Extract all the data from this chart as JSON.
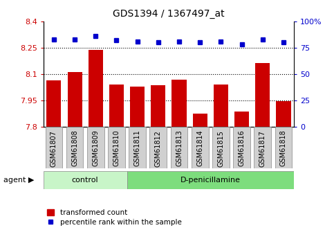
{
  "title": "GDS1394 / 1367497_at",
  "samples": [
    "GSM61807",
    "GSM61808",
    "GSM61809",
    "GSM61810",
    "GSM61811",
    "GSM61812",
    "GSM61813",
    "GSM61814",
    "GSM61815",
    "GSM61816",
    "GSM61817",
    "GSM61818"
  ],
  "bar_values": [
    8.065,
    8.11,
    8.24,
    8.04,
    8.03,
    8.035,
    8.07,
    7.875,
    8.04,
    7.885,
    8.165,
    7.945
  ],
  "percentile_values": [
    83,
    83,
    86,
    82,
    81,
    80,
    81,
    80,
    81,
    78,
    83,
    80
  ],
  "bar_color": "#cc0000",
  "percentile_color": "#0000cc",
  "ylim_left": [
    7.8,
    8.4
  ],
  "ylim_right": [
    0,
    100
  ],
  "yticks_left": [
    7.8,
    7.95,
    8.1,
    8.25,
    8.4
  ],
  "yticks_right": [
    0,
    25,
    50,
    75,
    100
  ],
  "ylabel_left_labels": [
    "7.8",
    "7.95",
    "8.1",
    "8.25",
    "8.4"
  ],
  "ylabel_right_labels": [
    "0",
    "25",
    "50",
    "75",
    "100%"
  ],
  "gridlines": [
    7.95,
    8.1,
    8.25
  ],
  "n_control": 4,
  "n_treatment": 8,
  "control_label": "control",
  "treatment_label": "D-penicillamine",
  "agent_label": "agent",
  "legend_bar_label": "transformed count",
  "legend_pct_label": "percentile rank within the sample",
  "control_color": "#c8f5c8",
  "treatment_color": "#7ddd7d",
  "label_bg_color": "#d0d0d0",
  "bar_width": 0.7,
  "figsize": [
    4.83,
    3.45
  ],
  "dpi": 100
}
